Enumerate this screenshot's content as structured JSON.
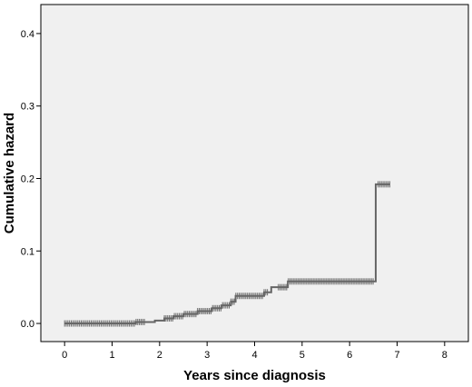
{
  "chart_data": {
    "type": "line",
    "title": "",
    "xlabel": "Years since diagnosis",
    "ylabel": "Cumulative hazard",
    "xlim": [
      -0.5,
      8.5
    ],
    "ylim": [
      -0.025,
      0.44
    ],
    "xticks": [
      "0",
      "1",
      "2",
      "3",
      "4",
      "5",
      "6",
      "7",
      "8"
    ],
    "yticks": [
      "0.0",
      "0.1",
      "0.2",
      "0.3",
      "0.4"
    ],
    "grid": false,
    "legend": "none",
    "colors": {
      "plot_background": "#f0f0f0",
      "line": "#666666",
      "axis": "#000000"
    },
    "series": [
      {
        "step": [
          [
            0,
            0
          ],
          [
            1.5,
            0.002
          ],
          [
            1.9,
            0.004
          ],
          [
            2.1,
            0.007
          ],
          [
            2.3,
            0.01
          ],
          [
            2.5,
            0.013
          ],
          [
            2.8,
            0.017
          ],
          [
            3.1,
            0.021
          ],
          [
            3.3,
            0.025
          ],
          [
            3.5,
            0.03
          ],
          [
            3.6,
            0.038
          ],
          [
            4.2,
            0.043
          ],
          [
            4.35,
            0.05
          ],
          [
            4.7,
            0.058
          ],
          [
            6.55,
            0.058
          ],
          [
            6.55,
            0.192
          ],
          [
            6.85,
            0.192
          ]
        ],
        "censor_ranges": [
          [
            0.0,
            1.7
          ],
          [
            2.1,
            4.3
          ],
          [
            4.5,
            6.5
          ],
          [
            6.6,
            6.85
          ]
        ]
      }
    ]
  }
}
